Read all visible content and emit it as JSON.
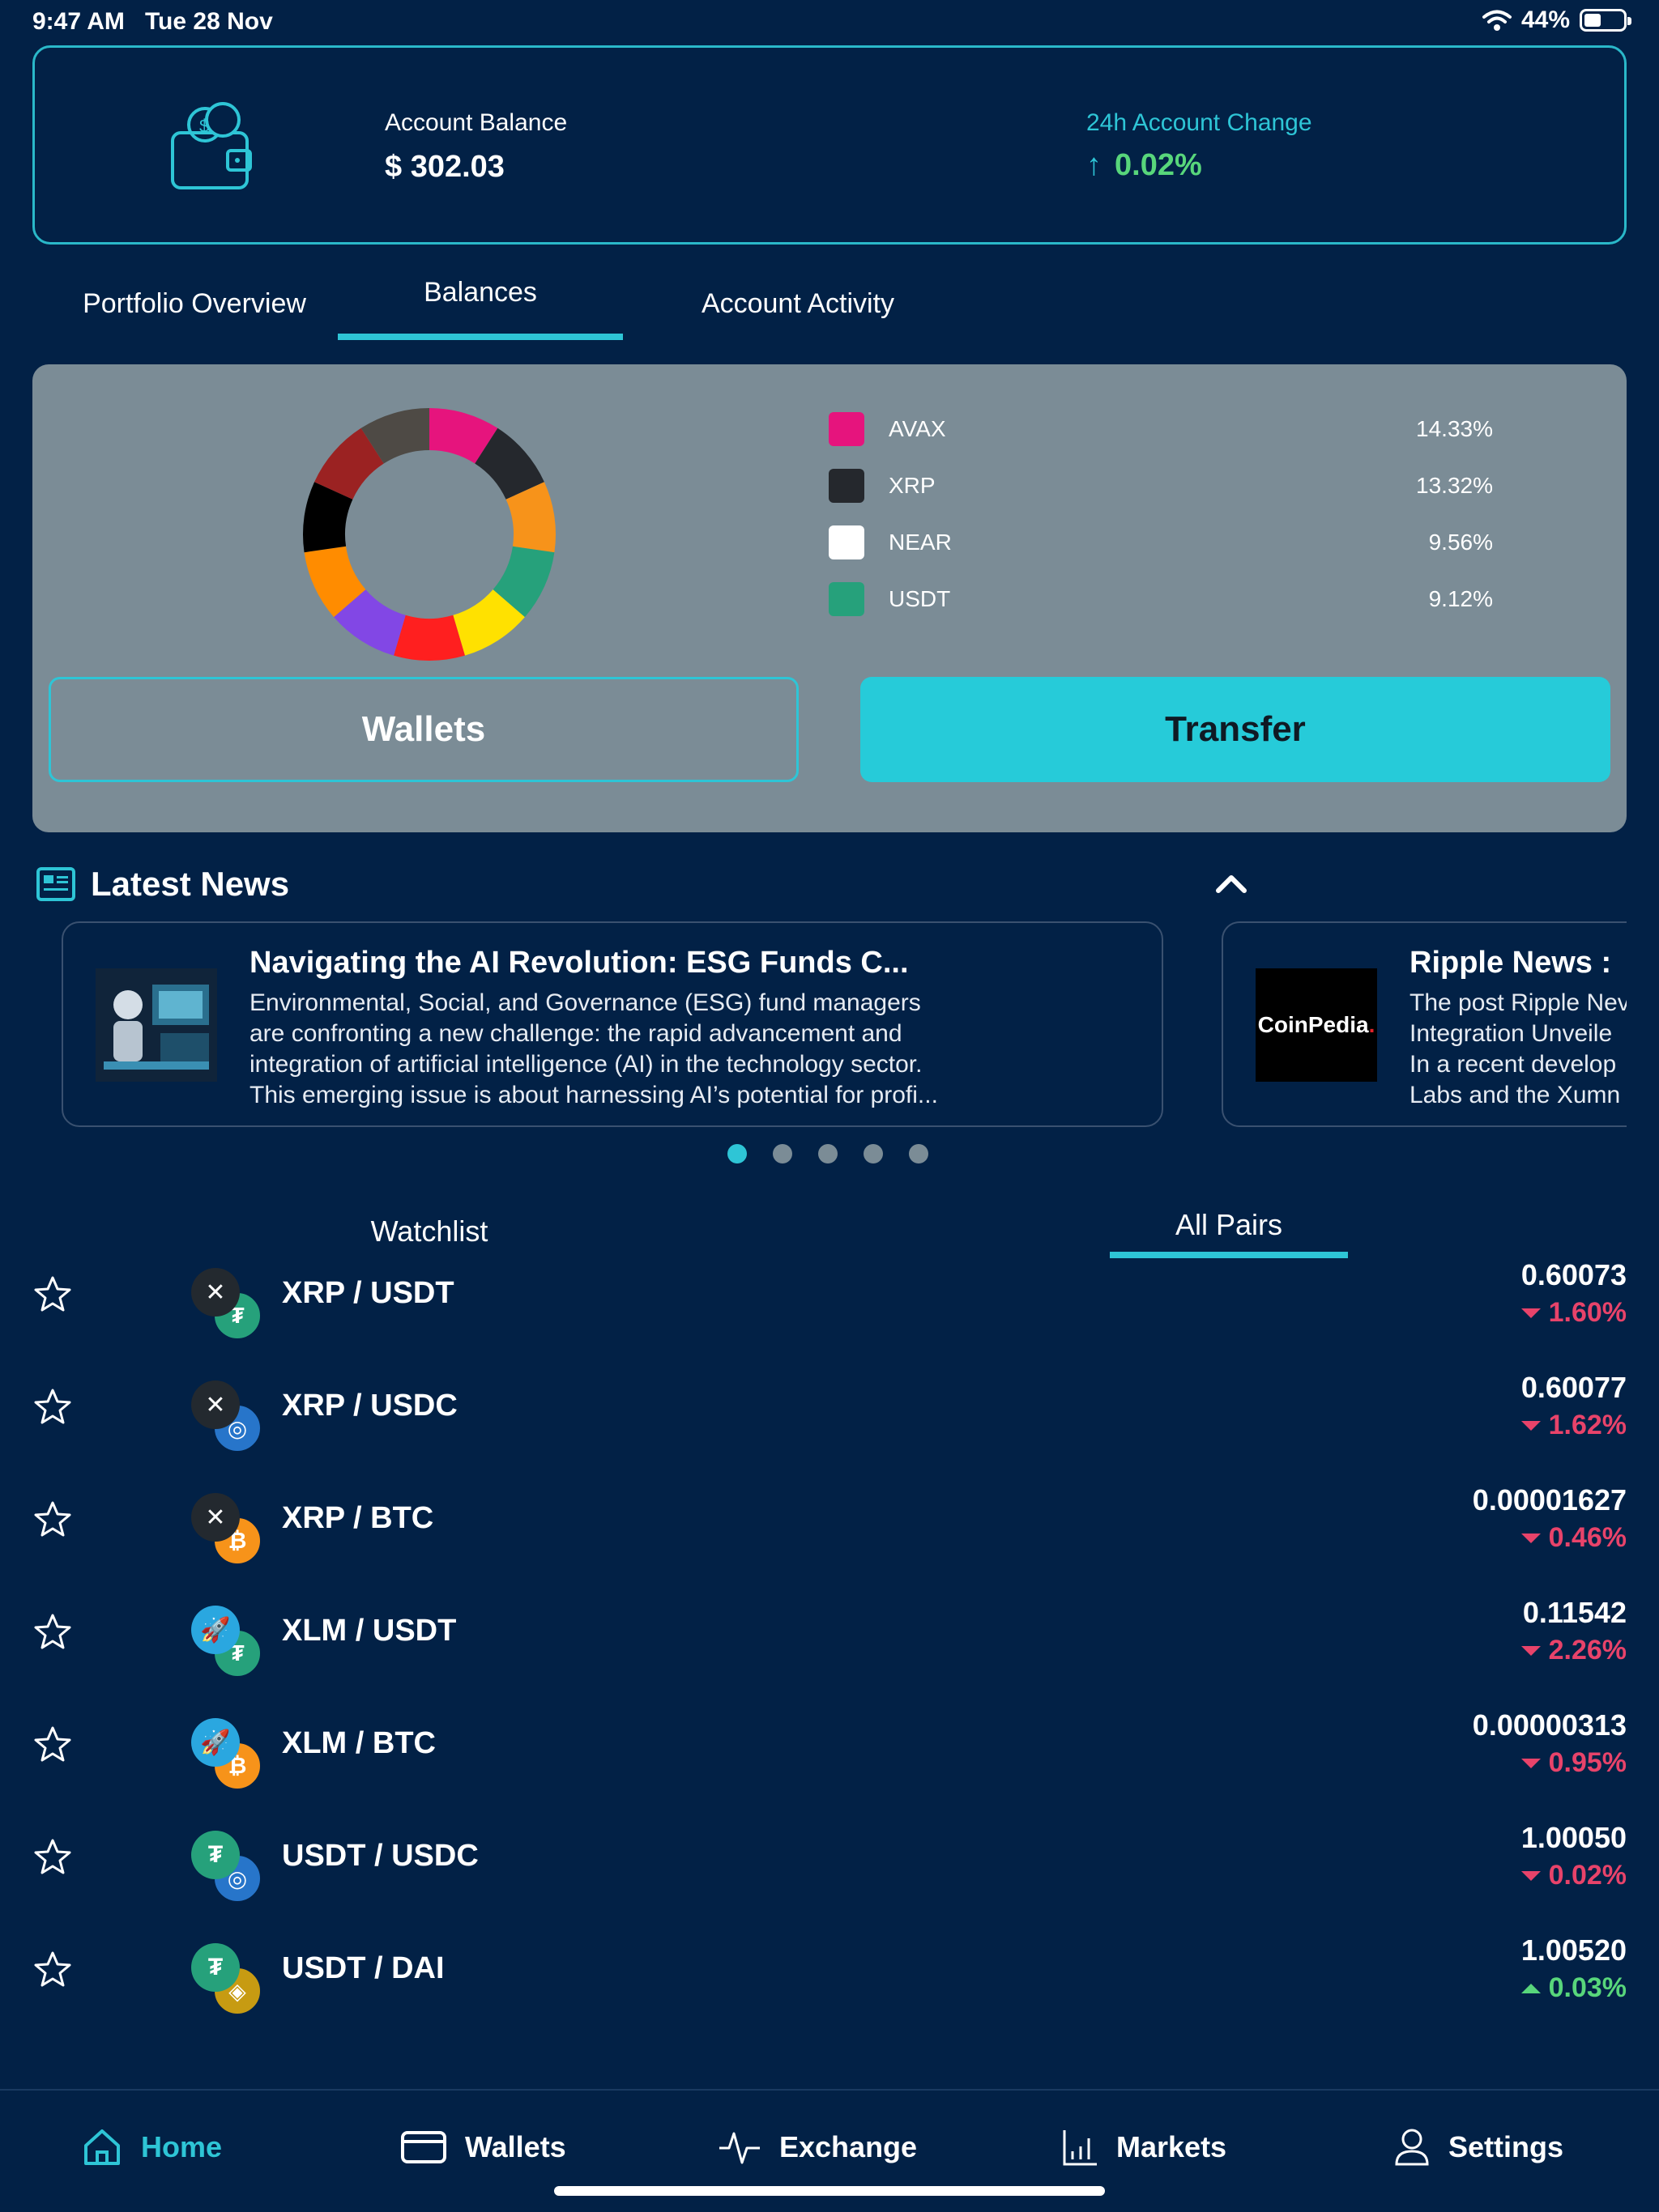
{
  "status_bar": {
    "time": "9:47 AM",
    "date": "Tue 28 Nov",
    "battery": "44%"
  },
  "account": {
    "balance_label": "Account Balance",
    "balance_value": "$ 302.03",
    "change_label": "24h Account Change",
    "change_value": "0.02%"
  },
  "tabs": [
    {
      "label": "Portfolio Overview",
      "active": false
    },
    {
      "label": "Balances",
      "active": true
    },
    {
      "label": "Account Activity",
      "active": false
    }
  ],
  "balances": {
    "legend": [
      {
        "name": "AVAX",
        "pct": "14.33%",
        "color": "#e6147d"
      },
      {
        "name": "XRP",
        "pct": "13.32%",
        "color": "#25282d"
      },
      {
        "name": "NEAR",
        "pct": "9.56%",
        "color": "#ffffff"
      },
      {
        "name": "USDT",
        "pct": "9.12%",
        "color": "#26a17b"
      }
    ],
    "donut_colors": [
      "#e6147d",
      "#25282d",
      "#f7931a",
      "#26a17b",
      "#ffe100",
      "#ff1f1f",
      "#8247e5",
      "#ff8c00",
      "#000000",
      "#9b2222",
      "#4e4a45"
    ],
    "wallets_button": "Wallets",
    "transfer_button": "Transfer"
  },
  "news": {
    "heading": "Latest News",
    "cards": [
      {
        "title": "Navigating the AI Revolution: ESG Funds C...",
        "lines": [
          "Environmental, Social, and Governance (ESG) fund managers",
          "are confronting a new challenge: the rapid advancement and",
          "integration of artificial intelligence (AI) in the technology sector.",
          "This emerging issue is about harnessing AI’s potential for profi..."
        ]
      },
      {
        "title": "Ripple News :",
        "lines": [
          "The post Ripple Nev",
          "Integration Unveile",
          "In a recent develop",
          "Labs and the Xumn"
        ],
        "logo_text": "CoinPedia."
      }
    ],
    "page_count": 5,
    "active_page": 1
  },
  "market_tabs": [
    {
      "label": "Watchlist",
      "active": false
    },
    {
      "label": "All Pairs",
      "active": true
    }
  ],
  "pairs": [
    {
      "name": "XRP / USDT",
      "price": "0.60073",
      "change": "1.60%",
      "dir": "down",
      "base": "xrp",
      "quote": "usdt"
    },
    {
      "name": "XRP / USDC",
      "price": "0.60077",
      "change": "1.62%",
      "dir": "down",
      "base": "xrp",
      "quote": "usdc"
    },
    {
      "name": "XRP / BTC",
      "price": "0.00001627",
      "change": "0.46%",
      "dir": "down",
      "base": "xrp",
      "quote": "btc"
    },
    {
      "name": "XLM / USDT",
      "price": "0.11542",
      "change": "2.26%",
      "dir": "down",
      "base": "xlm",
      "quote": "usdt"
    },
    {
      "name": "XLM / BTC",
      "price": "0.00000313",
      "change": "0.95%",
      "dir": "down",
      "base": "xlm",
      "quote": "btc"
    },
    {
      "name": "USDT / USDC",
      "price": "1.00050",
      "change": "0.02%",
      "dir": "down",
      "base": "usdt",
      "quote": "usdc"
    },
    {
      "name": "USDT / DAI",
      "price": "1.00520",
      "change": "0.03%",
      "dir": "up",
      "base": "usdt",
      "quote": "dai"
    }
  ],
  "bottom_nav": [
    {
      "label": "Home",
      "icon": "home-icon",
      "active": true
    },
    {
      "label": "Wallets",
      "icon": "card-icon",
      "active": false
    },
    {
      "label": "Exchange",
      "icon": "pulse-icon",
      "active": false
    },
    {
      "label": "Markets",
      "icon": "bar-chart-icon",
      "active": false
    },
    {
      "label": "Settings",
      "icon": "user-icon",
      "active": false
    }
  ],
  "colors": {
    "background": "#022146",
    "accent": "#2ec5d6",
    "panel": "#7b8c96",
    "positive": "#58d67b",
    "negative": "#e8436a"
  }
}
